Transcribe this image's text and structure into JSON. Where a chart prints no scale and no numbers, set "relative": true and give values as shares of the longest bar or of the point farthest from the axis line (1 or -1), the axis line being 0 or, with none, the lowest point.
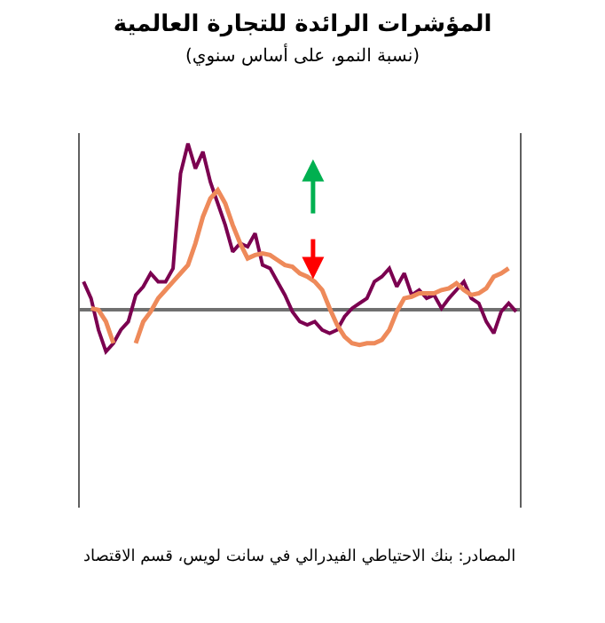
{
  "chart_data": {
    "type": "line",
    "title": "المؤشرات الرائدة للتجارة العالمية",
    "subtitle": "(نسبة النمو، على أساس سنوي)",
    "annotations": [
      "المصادر: بنك الاحتياطي الفيدرالي في سانت لويس، قسم الاقتصاد"
    ],
    "relative": true,
    "tick_labels": false,
    "legend": false,
    "marker": "none",
    "line_style": "solid",
    "categories": [
      null,
      null,
      null,
      null,
      null,
      null,
      null,
      null,
      null,
      null,
      null,
      null,
      null,
      null,
      null,
      null,
      null,
      null,
      null,
      null,
      null,
      null,
      null,
      null,
      null,
      null,
      null,
      null,
      null,
      null,
      null,
      null,
      null,
      null,
      null,
      null,
      null,
      null,
      null,
      null,
      null,
      null,
      null,
      null,
      null,
      null,
      null,
      null,
      null,
      null,
      null,
      null,
      null,
      null,
      null,
      null,
      null,
      null,
      null
    ],
    "series": [
      {
        "color": "#7b0050",
        "values": [
          0.17,
          0.07,
          -0.12,
          -0.25,
          -0.2,
          -0.12,
          -0.07,
          0.09,
          0.14,
          0.22,
          0.17,
          0.17,
          0.25,
          0.82,
          1.0,
          0.85,
          0.95,
          0.77,
          0.64,
          0.51,
          0.35,
          0.4,
          0.38,
          0.46,
          0.27,
          0.25,
          0.17,
          0.09,
          -0.01,
          -0.07,
          -0.09,
          -0.07,
          -0.12,
          -0.14,
          -0.12,
          -0.04,
          0.01,
          0.04,
          0.07,
          0.17,
          0.2,
          0.25,
          0.14,
          0.22,
          0.09,
          0.12,
          0.07,
          0.09,
          0.01,
          0.07,
          0.12,
          0.17,
          0.07,
          0.04,
          -0.07,
          -0.14,
          -0.01,
          0.04,
          -0.01
        ]
      },
      {
        "color": "#ee8a5a",
        "values": [
          null,
          0.01,
          0,
          -0.07,
          -0.2,
          null,
          null,
          -0.2,
          -0.07,
          -0.01,
          0.07,
          0.12,
          0.17,
          0.22,
          0.27,
          0.4,
          0.56,
          0.67,
          0.72,
          0.64,
          0.51,
          0.4,
          0.31,
          0.33,
          0.34,
          0.33,
          0.3,
          0.27,
          0.26,
          0.22,
          0.2,
          0.17,
          0.12,
          0.01,
          -0.09,
          -0.16,
          -0.2,
          -0.21,
          -0.2,
          -0.2,
          -0.18,
          -0.12,
          -0.01,
          0.07,
          0.08,
          0.1,
          0.1,
          0.1,
          0.12,
          0.13,
          0.16,
          0.12,
          0.09,
          0.1,
          0.13,
          0.2,
          0.22,
          0.25,
          null
        ]
      }
    ]
  }
}
